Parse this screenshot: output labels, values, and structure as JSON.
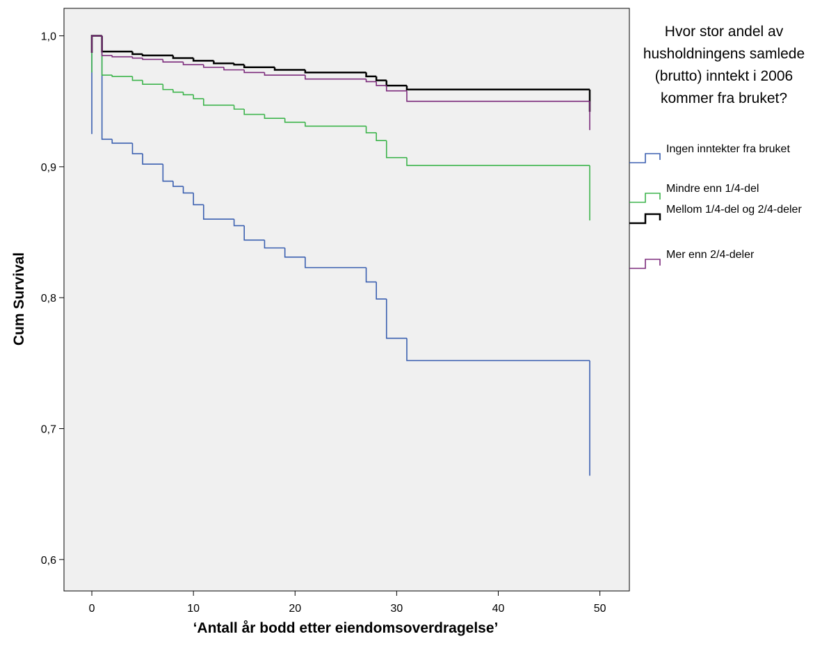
{
  "chart_data": {
    "type": "line",
    "step": "post",
    "x_label": "‘Antall år bodd etter eiendomsoverdragelse’",
    "y_label": "Cum Survival",
    "legend_title": "Hvor stor andel av husholdningens samlede (brutto) inntekt i 2006 kommer fra bruket?",
    "xlim": [
      -2.74,
      52.9
    ],
    "ylim": [
      0.576,
      1.021
    ],
    "xticks": [
      0,
      10,
      20,
      30,
      40,
      50
    ],
    "yticks": [
      {
        "value": 0.6,
        "label": "0,6"
      },
      {
        "value": 0.7,
        "label": "0,7"
      },
      {
        "value": 0.8,
        "label": "0,8"
      },
      {
        "value": 0.9,
        "label": "0,9"
      },
      {
        "value": 1.0,
        "label": "1,0"
      }
    ],
    "background": "#f0f0f0",
    "series": [
      {
        "name": "Ingen inntekter fra bruket",
        "color": "#3a5fb0",
        "x": [
          0,
          0,
          1,
          2,
          4,
          5,
          7,
          8,
          9,
          10,
          11,
          14,
          15,
          17,
          19,
          21,
          27,
          28,
          29,
          31,
          49
        ],
        "values": [
          0.925,
          1.0,
          0.921,
          0.918,
          0.91,
          0.902,
          0.889,
          0.885,
          0.88,
          0.871,
          0.86,
          0.855,
          0.844,
          0.838,
          0.831,
          0.823,
          0.812,
          0.799,
          0.769,
          0.752,
          0.664
        ]
      },
      {
        "name": "Mindre enn 1/4-del",
        "color": "#3cb44b",
        "x": [
          0,
          0,
          1,
          2,
          4,
          5,
          7,
          8,
          9,
          10,
          11,
          14,
          15,
          17,
          19,
          21,
          27,
          28,
          29,
          31,
          49
        ],
        "values": [
          0.972,
          1.0,
          0.97,
          0.969,
          0.966,
          0.963,
          0.959,
          0.957,
          0.955,
          0.952,
          0.947,
          0.944,
          0.94,
          0.937,
          0.934,
          0.931,
          0.926,
          0.92,
          0.907,
          0.901,
          0.859
        ]
      },
      {
        "name": "Mellom 1/4-del og 2/4-deler",
        "color": "#000000",
        "x": [
          0,
          0,
          1,
          4,
          5,
          8,
          10,
          12,
          14,
          15,
          18,
          21,
          27,
          28,
          29,
          31,
          49
        ],
        "values": [
          0.987,
          1.0,
          0.988,
          0.986,
          0.985,
          0.983,
          0.981,
          0.979,
          0.978,
          0.976,
          0.974,
          0.972,
          0.969,
          0.966,
          0.962,
          0.959,
          0.942
        ]
      },
      {
        "name": "Mer enn 2/4-deler",
        "color": "#7b2a7b",
        "x": [
          0,
          0,
          1,
          2,
          4,
          5,
          7,
          9,
          11,
          13,
          15,
          17,
          21,
          27,
          28,
          29,
          31,
          49
        ],
        "values": [
          0.987,
          1.0,
          0.985,
          0.984,
          0.983,
          0.982,
          0.98,
          0.978,
          0.976,
          0.974,
          0.972,
          0.97,
          0.967,
          0.965,
          0.962,
          0.958,
          0.95,
          0.928
        ]
      }
    ]
  }
}
